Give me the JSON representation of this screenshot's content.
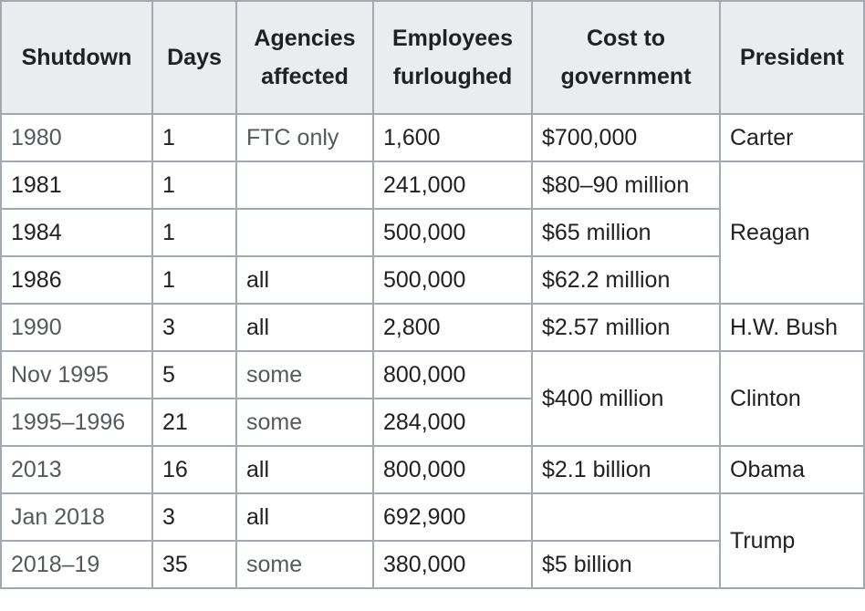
{
  "table": {
    "headers": [
      "Shutdown",
      "Days",
      "Agencies affected",
      "Employees furloughed",
      "Cost to government",
      "President"
    ],
    "rows": [
      {
        "shutdown": "1980",
        "days": "1",
        "agencies": "FTC only",
        "employees": "1,600",
        "cost": "$700,000",
        "president": "Carter"
      },
      {
        "shutdown": "1981",
        "days": "1",
        "agencies": "",
        "employees": "241,000",
        "cost": "$80–90 million",
        "president": "Reagan"
      },
      {
        "shutdown": "1984",
        "days": "1",
        "agencies": "",
        "employees": "500,000",
        "cost": "$65 million"
      },
      {
        "shutdown": "1986",
        "days": "1",
        "agencies": "all",
        "employees": "500,000",
        "cost": "$62.2 million"
      },
      {
        "shutdown": "1990",
        "days": "3",
        "agencies": "all",
        "employees": "2,800",
        "cost": "$2.57 million",
        "president": "H.W. Bush"
      },
      {
        "shutdown": "Nov 1995",
        "days": "5",
        "agencies": "some",
        "employees": "800,000",
        "cost": "$400 million",
        "president": "Clinton"
      },
      {
        "shutdown": "1995–1996",
        "days": "21",
        "agencies": "some",
        "employees": "284,000"
      },
      {
        "shutdown": "2013",
        "days": "16",
        "agencies": "all",
        "employees": "800,000",
        "cost": "$2.1 billion",
        "president": "Obama"
      },
      {
        "shutdown": "Jan 2018",
        "days": "3",
        "agencies": "all",
        "employees": "692,900",
        "cost": "",
        "president": "Trump"
      },
      {
        "shutdown": "2018–19",
        "days": "35",
        "agencies": "some",
        "employees": "380,000",
        "cost": "$5 billion"
      }
    ]
  }
}
